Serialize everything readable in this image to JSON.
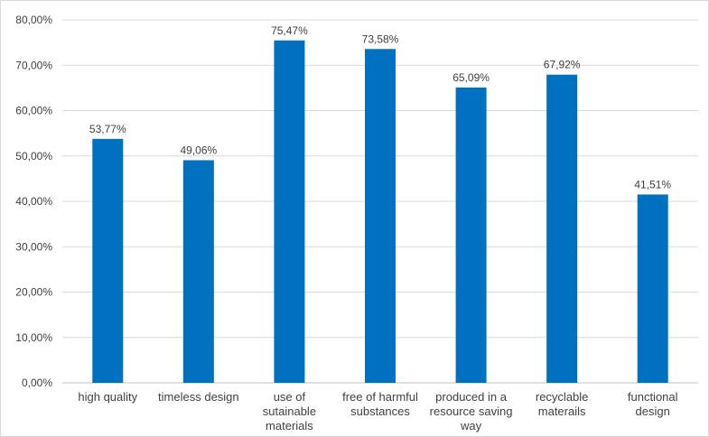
{
  "chart_data": {
    "type": "bar",
    "categories": [
      [
        "high quality"
      ],
      [
        "timeless design"
      ],
      [
        "use of",
        "sutainable",
        "materials"
      ],
      [
        "free of harmful",
        "substances"
      ],
      [
        "produced in a",
        "resource saving",
        "way"
      ],
      [
        "recyclable",
        "materails"
      ],
      [
        "functional",
        "design"
      ]
    ],
    "values": [
      53.77,
      49.06,
      75.47,
      73.58,
      65.09,
      67.92,
      41.51
    ],
    "data_labels": [
      "53,77%",
      "49,06%",
      "75,47%",
      "73,58%",
      "65,09%",
      "67,92%",
      "41,51%"
    ],
    "ylim": [
      0,
      80
    ],
    "yticks": [
      0,
      10,
      20,
      30,
      40,
      50,
      60,
      70,
      80
    ],
    "ytick_labels": [
      "0,00%",
      "10,00%",
      "20,00%",
      "30,00%",
      "40,00%",
      "50,00%",
      "60,00%",
      "70,00%",
      "80,00%"
    ],
    "grid": true,
    "color": "#0070c0"
  }
}
